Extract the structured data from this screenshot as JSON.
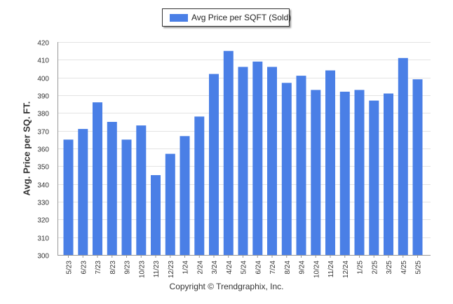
{
  "chart_data": {
    "type": "bar",
    "legend": {
      "label": "Avg Price per SQFT (Sold)",
      "placement": "top-center"
    },
    "ylabel": "Avg. Price per SQ. FT.",
    "xlabel": "",
    "ylim": [
      300,
      420
    ],
    "y_ticks": [
      300,
      310,
      320,
      330,
      340,
      350,
      360,
      370,
      380,
      390,
      400,
      410,
      420
    ],
    "grid": true,
    "bar_color": "#4a7fe6",
    "categories": [
      "5/23",
      "6/23",
      "7/23",
      "8/23",
      "9/23",
      "10/23",
      "11/23",
      "12/23",
      "1/24",
      "2/24",
      "3/24",
      "4/24",
      "5/24",
      "6/24",
      "7/24",
      "8/24",
      "9/24",
      "10/24",
      "11/24",
      "12/24",
      "1/25",
      "2/25",
      "3/25",
      "4/25",
      "5/25"
    ],
    "series": [
      {
        "name": "Avg Price per SQFT (Sold)",
        "values": [
          365,
          371,
          386,
          375,
          365,
          373,
          345,
          357,
          367,
          378,
          402,
          415,
          406,
          409,
          406,
          397,
          401,
          393,
          404,
          392,
          393,
          387,
          391,
          411,
          399
        ]
      }
    ]
  },
  "footer": {
    "copyright": "Copyright © Trendgraphix, Inc."
  }
}
